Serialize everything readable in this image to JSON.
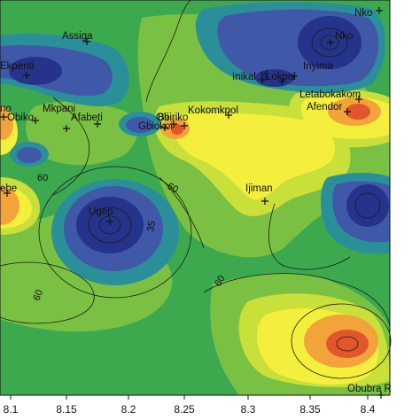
{
  "map": {
    "colors": {
      "deep_blue": "#26338a",
      "mid_blue": "#3f58a8",
      "teal": "#2b8f9a",
      "green": "#3da94f",
      "light_green": "#7ac143",
      "yellow_green": "#c9df3a",
      "yellow": "#f3ef3c",
      "orange": "#f2a33a",
      "red_orange": "#e2562c"
    },
    "towns": [
      {
        "name": "Nko",
        "icon": "plus-marker-icon"
      },
      {
        "name": "Assiga",
        "icon": "plus-marker-icon"
      },
      {
        "name": "Ekpenti",
        "icon": "plus-marker-icon"
      },
      {
        "name": "Nko",
        "icon": "plus-marker-icon"
      },
      {
        "name": "Inyima",
        "icon": "plus-marker-icon"
      },
      {
        "name": "Inikal",
        "icon": "plus-marker-icon"
      },
      {
        "name": "Lokpoi",
        "icon": "plus-marker-icon"
      },
      {
        "name": "Letabokakom",
        "icon": "plus-marker-icon"
      },
      {
        "name": "Afendor",
        "icon": "plus-marker-icon"
      },
      {
        "name": "Kokomkpol",
        "icon": "plus-marker-icon"
      },
      {
        "name": "Obiriko",
        "icon": "plus-marker-icon"
      },
      {
        "name": "Bii",
        "icon": "plus-marker-icon"
      },
      {
        "name": "Gbiokoi",
        "icon": "plus-marker-icon"
      },
      {
        "name": "Mkpani",
        "icon": "plus-marker-icon"
      },
      {
        "name": "Afabeti",
        "icon": "plus-marker-icon"
      },
      {
        "name": "Obiko",
        "icon": "plus-marker-icon"
      },
      {
        "name": "no",
        "icon": "plus-marker-icon"
      },
      {
        "name": "Ijiman",
        "icon": "plus-marker-icon"
      },
      {
        "name": "Ugep",
        "icon": "plus-marker-icon"
      },
      {
        "name": "ebe",
        "icon": "plus-marker-icon"
      },
      {
        "name": "Obubra R",
        "icon": "plus-marker-icon"
      }
    ],
    "contour_labels": [
      "35",
      "35",
      "60",
      "60",
      "60",
      "60"
    ],
    "x_ticks": [
      "8.1",
      "8.15",
      "8.2",
      "8.25",
      "8.3",
      "8.35",
      "8.4"
    ]
  }
}
